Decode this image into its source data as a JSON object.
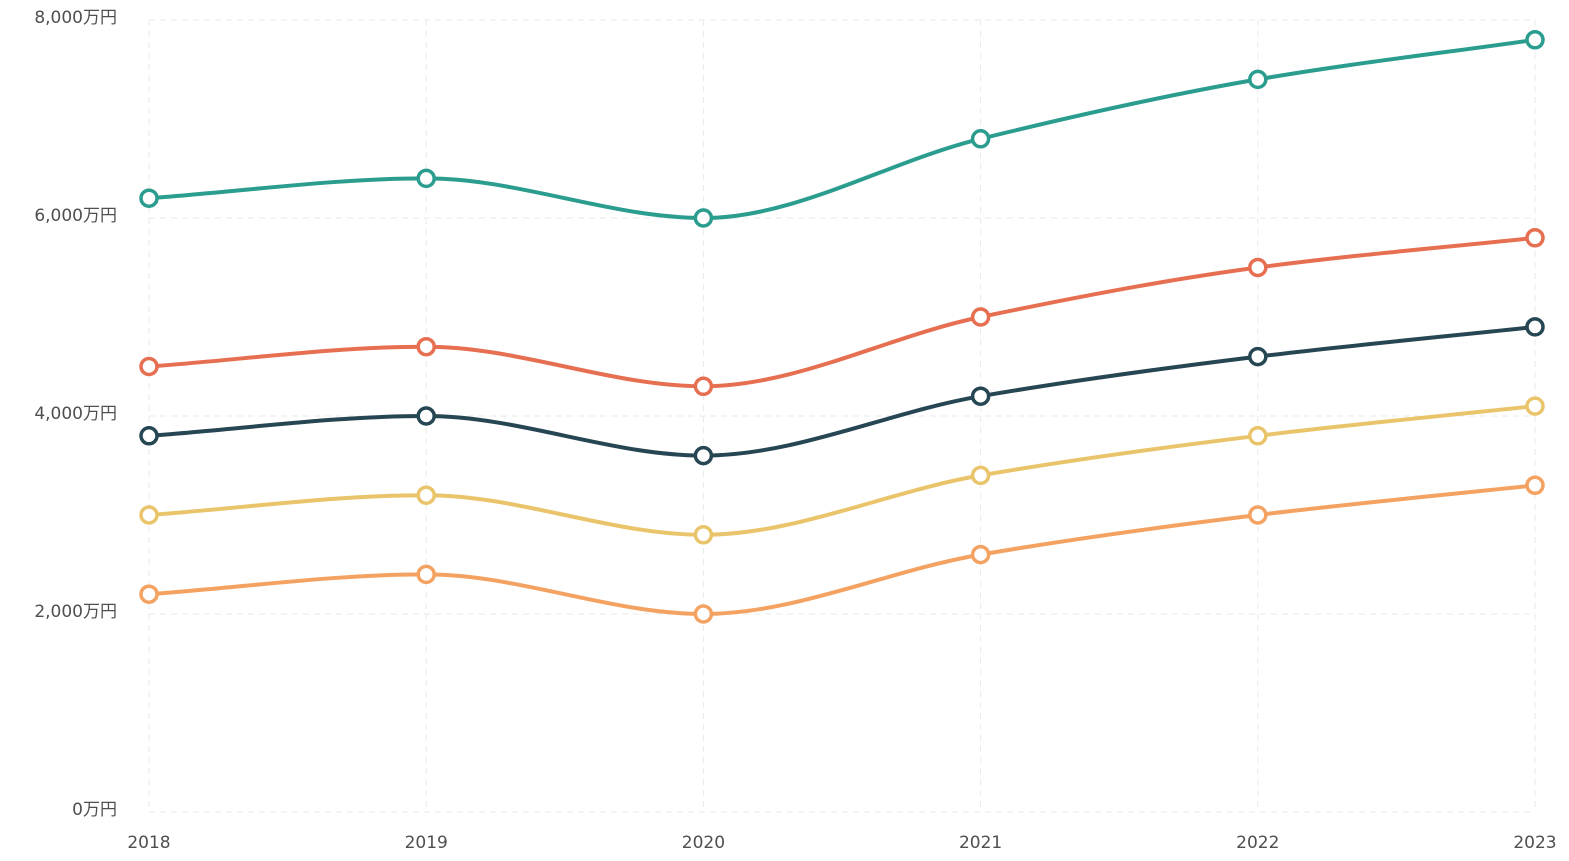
{
  "chart_data": {
    "type": "line",
    "title": "",
    "xlabel": "",
    "ylabel": "",
    "x": [
      "2018",
      "2019",
      "2020",
      "2021",
      "2022",
      "2023"
    ],
    "ylim": [
      0,
      8000
    ],
    "yticks": [
      {
        "value": 0,
        "label": "0万円"
      },
      {
        "value": 2000,
        "label": "2,000万円"
      },
      {
        "value": 4000,
        "label": "4,000万円"
      },
      {
        "value": 6000,
        "label": "6,000万円"
      },
      {
        "value": 8000,
        "label": "8,000万円"
      }
    ],
    "grid": true,
    "legend": "none",
    "smooth": true,
    "series": [
      {
        "color": "#2a9d8f",
        "values": [
          6200,
          6400,
          6000,
          6800,
          7400,
          7800
        ]
      },
      {
        "color": "#e76f51",
        "values": [
          4500,
          4700,
          4300,
          5000,
          5500,
          5800
        ]
      },
      {
        "color": "#264653",
        "values": [
          3800,
          4000,
          3600,
          4200,
          4600,
          4900
        ]
      },
      {
        "color": "#e9c46a",
        "values": [
          3000,
          3200,
          2800,
          3400,
          3800,
          4100
        ]
      },
      {
        "color": "#f4a261",
        "values": [
          2200,
          2400,
          2000,
          2600,
          3000,
          3300
        ]
      }
    ]
  }
}
